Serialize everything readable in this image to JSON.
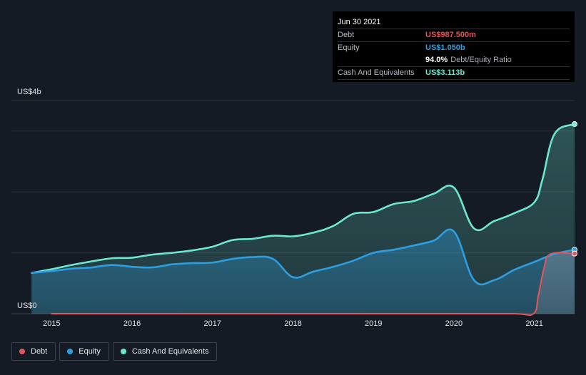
{
  "tooltip": {
    "date": "Jun 30 2021",
    "debt_label": "Debt",
    "debt_value": "US$987.500m",
    "equity_label": "Equity",
    "equity_value": "US$1.050b",
    "ratio_value": "94.0%",
    "ratio_label": "Debt/Equity Ratio",
    "cash_label": "Cash And Equivalents",
    "cash_value": "US$3.113b"
  },
  "legend": [
    {
      "label": "Debt",
      "color": "#e5545a"
    },
    {
      "label": "Equity",
      "color": "#2d9ee0"
    },
    {
      "label": "Cash And Equivalents",
      "color": "#6ee7d0"
    }
  ],
  "colors": {
    "debt": "#e5545a",
    "equity": "#2d9ee0",
    "cash": "#6ee7d0",
    "background": "#151b25",
    "grid": "#2a303b"
  },
  "chart_data": {
    "type": "area",
    "title": "",
    "xlabel": "",
    "ylabel": "",
    "y_top_label": "US$4b",
    "y_bottom_label": "US$0",
    "ylim": [
      0,
      3.5
    ],
    "xlim": [
      2014.5,
      2021.5
    ],
    "x_ticks": [
      2015,
      2016,
      2017,
      2018,
      2019,
      2020,
      2021
    ],
    "x_tick_labels": [
      "2015",
      "2016",
      "2017",
      "2018",
      "2019",
      "2020",
      "2021"
    ],
    "grid": true,
    "legend_position": "bottom-left",
    "series": [
      {
        "name": "Debt",
        "key": "debt",
        "x": [
          2015.0,
          2016.0,
          2017.0,
          2018.0,
          2019.0,
          2020.0,
          2020.75,
          2020.99,
          2021.05,
          2021.12,
          2021.2,
          2021.5
        ],
        "y": [
          0.0,
          0.0,
          0.0,
          0.0,
          0.0,
          0.0,
          0.0,
          0.0,
          0.3,
          0.75,
          0.98,
          0.9875
        ]
      },
      {
        "name": "Equity",
        "key": "equity",
        "x": [
          2014.75,
          2015.0,
          2015.25,
          2015.5,
          2015.75,
          2016.0,
          2016.25,
          2016.5,
          2016.75,
          2017.0,
          2017.25,
          2017.5,
          2017.75,
          2018.0,
          2018.25,
          2018.5,
          2018.75,
          2019.0,
          2019.25,
          2019.5,
          2019.75,
          2020.0,
          2020.25,
          2020.5,
          2020.75,
          2021.0,
          2021.25,
          2021.5
        ],
        "y": [
          0.67,
          0.7,
          0.74,
          0.76,
          0.8,
          0.77,
          0.76,
          0.81,
          0.83,
          0.84,
          0.9,
          0.93,
          0.9,
          0.6,
          0.69,
          0.77,
          0.87,
          1.0,
          1.05,
          1.12,
          1.2,
          1.35,
          0.55,
          0.55,
          0.72,
          0.85,
          0.98,
          1.05
        ]
      },
      {
        "name": "Cash And Equivalents",
        "key": "cash",
        "x": [
          2014.75,
          2015.0,
          2015.25,
          2015.5,
          2015.75,
          2016.0,
          2016.25,
          2016.5,
          2016.75,
          2017.0,
          2017.25,
          2017.5,
          2017.75,
          2018.0,
          2018.25,
          2018.5,
          2018.75,
          2019.0,
          2019.25,
          2019.5,
          2019.75,
          2020.0,
          2020.25,
          2020.5,
          2020.75,
          2021.0,
          2021.1,
          2021.25,
          2021.5
        ],
        "y": [
          0.67,
          0.73,
          0.8,
          0.86,
          0.91,
          0.92,
          0.97,
          1.0,
          1.04,
          1.1,
          1.21,
          1.23,
          1.28,
          1.27,
          1.33,
          1.44,
          1.64,
          1.67,
          1.8,
          1.85,
          1.97,
          2.07,
          1.4,
          1.52,
          1.65,
          1.83,
          2.2,
          2.95,
          3.113
        ]
      }
    ]
  }
}
